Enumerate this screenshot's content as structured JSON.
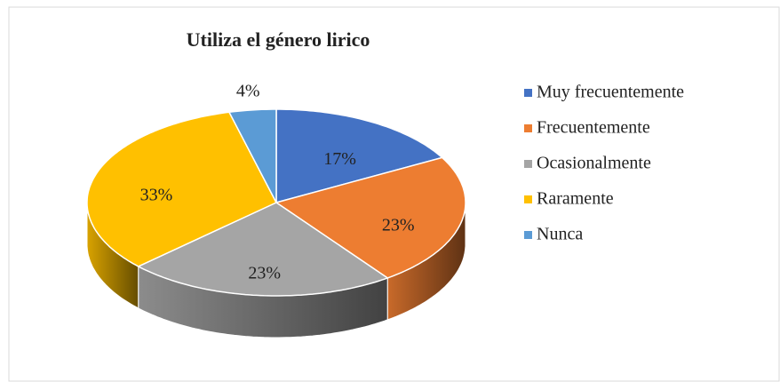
{
  "chart_data": {
    "type": "pie",
    "title": "Utiliza el género lirico",
    "categories": [
      "Muy frecuentemente",
      "Frecuentemente",
      "Ocasionalmente",
      "Raramente",
      "Nunca"
    ],
    "values": [
      17,
      23,
      23,
      33,
      4
    ],
    "value_labels": [
      "17%",
      "23%",
      "23%",
      "33%",
      "4%"
    ],
    "colors": [
      "#4472c4",
      "#ed7d31",
      "#a5a5a5",
      "#ffc000",
      "#5b9bd5"
    ],
    "legend": "right",
    "three_d": true
  }
}
